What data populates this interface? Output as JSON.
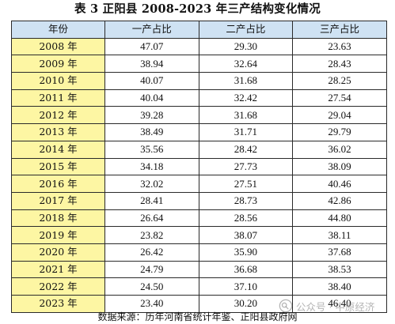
{
  "title": "表 3 正阳县 2008-2023 年三产结构变化情况",
  "table": {
    "headers": [
      "年份",
      "一产占比",
      "二产占比",
      "三产占比"
    ],
    "rows": [
      [
        "2008 年",
        "47.07",
        "29.30",
        "23.63"
      ],
      [
        "2009 年",
        "38.94",
        "32.64",
        "28.43"
      ],
      [
        "2010 年",
        "40.07",
        "31.68",
        "28.25"
      ],
      [
        "2011 年",
        "40.04",
        "32.42",
        "27.54"
      ],
      [
        "2012 年",
        "39.28",
        "31.68",
        "29.04"
      ],
      [
        "2013 年",
        "38.49",
        "31.71",
        "29.79"
      ],
      [
        "2014 年",
        "35.56",
        "28.42",
        "36.02"
      ],
      [
        "2015 年",
        "34.18",
        "27.73",
        "38.09"
      ],
      [
        "2016 年",
        "32.02",
        "27.51",
        "40.46"
      ],
      [
        "2017 年",
        "28.41",
        "28.73",
        "42.86"
      ],
      [
        "2018 年",
        "26.64",
        "28.56",
        "44.80"
      ],
      [
        "2019 年",
        "23.82",
        "38.07",
        "38.11"
      ],
      [
        "2020 年",
        "26.42",
        "35.90",
        "37.68"
      ],
      [
        "2021 年",
        "24.79",
        "36.68",
        "38.53"
      ],
      [
        "2022 年",
        "24.50",
        "37.10",
        "38.40"
      ],
      [
        "2023 年",
        "23.40",
        "30.20",
        "46.40"
      ]
    ]
  },
  "source": "数据来源：历年河南省统计年鉴、正阳县政府网",
  "watermark": {
    "text": "公众号 · 中原经济",
    "icon": "wechat-search-icon"
  },
  "colors": {
    "header_bg": "#cfe2f3",
    "year_bg": "#fdf6a3",
    "border": "#2a2a2a",
    "text": "#111111"
  }
}
